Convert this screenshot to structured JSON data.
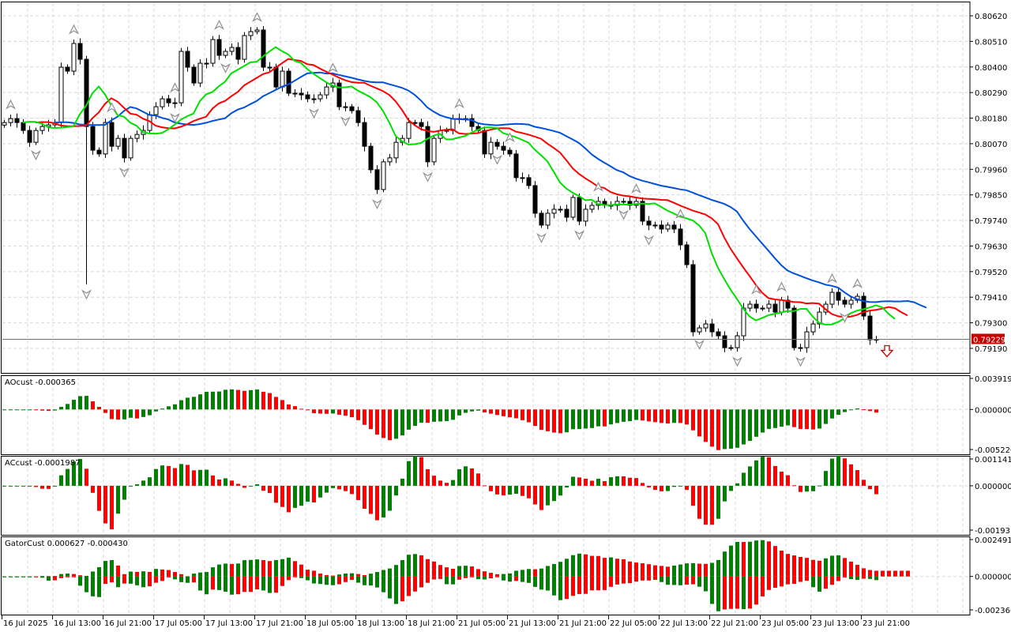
{
  "chart_data": {
    "type": "candlestick",
    "symbol_timeframe": "H1",
    "price_axis": {
      "max": 0.8062,
      "ticks": [
        "0.80620",
        "0.80510",
        "0.80400",
        "0.80290",
        "0.80180",
        "0.80070",
        "0.79960",
        "0.79850",
        "0.79740",
        "0.79630",
        "0.79520",
        "0.79410",
        "0.79300",
        "0.79190"
      ]
    },
    "current_price": "0.79229",
    "time_labels": [
      "16 Jul 2025",
      "16 Jul 13:00",
      "16 Jul 21:00",
      "17 Jul 05:00",
      "17 Jul 13:00",
      "17 Jul 21:00",
      "18 Jul 05:00",
      "18 Jul 13:00",
      "18 Jul 21:00",
      "21 Jul 05:00",
      "21 Jul 13:00",
      "21 Jul 21:00",
      "22 Jul 05:00",
      "22 Jul 13:00",
      "22 Jul 21:00",
      "23 Jul 05:00",
      "23 Jul 13:00",
      "23 Jul 21:00"
    ],
    "time_label_every_bars": 8,
    "closes": [
      0.80161,
      0.80178,
      0.80161,
      0.80127,
      0.80076,
      0.80127,
      0.80144,
      0.80151,
      0.80161,
      0.80399,
      0.80382,
      0.80501,
      0.80433,
      0.80144,
      0.80042,
      0.80026,
      0.80161,
      0.80059,
      0.80093,
      0.80009,
      0.80093,
      0.8011,
      0.80127,
      0.80195,
      0.80229,
      0.80263,
      0.80246,
      0.80246,
      0.80467,
      0.80399,
      0.80331,
      0.80416,
      0.80416,
      0.80518,
      0.8045,
      0.80467,
      0.80484,
      0.80433,
      0.80535,
      0.80552,
      0.80559,
      0.80399,
      0.80399,
      0.80314,
      0.80382,
      0.80287,
      0.80287,
      0.8028,
      0.80263,
      0.80263,
      0.8028,
      0.80314,
      0.80331,
      0.80229,
      0.80229,
      0.80212,
      0.80161,
      0.80059,
      0.79958,
      0.79873,
      0.79992,
      0.80009,
      0.80076,
      0.80093,
      0.80161,
      0.80161,
      0.80144,
      0.79992,
      0.80093,
      0.80127,
      0.80127,
      0.80178,
      0.80178,
      0.80178,
      0.80144,
      0.80127,
      0.80026,
      0.80076,
      0.80059,
      0.80042,
      0.80026,
      0.79924,
      0.79924,
      0.7989,
      0.79771,
      0.7972,
      0.79771,
      0.79788,
      0.79788,
      0.79754,
      0.79839,
      0.79737,
      0.79788,
      0.79805,
      0.79822,
      0.79805,
      0.79805,
      0.79822,
      0.79822,
      0.79805,
      0.79822,
      0.79737,
      0.7972,
      0.7972,
      0.79703,
      0.7972,
      0.79703,
      0.79635,
      0.7955,
      0.79261,
      0.79278,
      0.79295,
      0.79261,
      0.79244,
      0.79193,
      0.79193,
      0.79244,
      0.79363,
      0.7938,
      0.79363,
      0.79363,
      0.7938,
      0.79346,
      0.79397,
      0.79363,
      0.79193,
      0.79193,
      0.79261,
      0.79295,
      0.79346,
      0.7938,
      0.79431,
      0.79397,
      0.7938,
      0.79397,
      0.79414,
      0.79329,
      0.79227,
      0.79229
    ],
    "first_open": 0.8015,
    "long_wicks": [
      {
        "bar": 13,
        "low": 0.79465
      }
    ],
    "fractals_up": [
      1,
      11,
      17,
      27,
      34,
      40,
      52,
      72,
      80,
      94,
      100,
      107,
      119,
      123,
      131,
      135
    ],
    "fractals_down": [
      5,
      13,
      19,
      27,
      35,
      49,
      54,
      59,
      67,
      78,
      85,
      91,
      98,
      102,
      110,
      116,
      126,
      133
    ],
    "alligator": {
      "jaw": {
        "period": 13,
        "shift": 8,
        "color": "#0050dc"
      },
      "teeth": {
        "period": 8,
        "shift": 5,
        "color": "#ff0000"
      },
      "lips": {
        "period": 5,
        "shift": 3,
        "color": "#00e000"
      }
    },
    "panels": [
      {
        "id": "ao",
        "title": "AOcust -0.000365",
        "max": "0.003919",
        "zero": "0.000000",
        "min": "-0.005220"
      },
      {
        "id": "ac",
        "title": "ACcust -0.0001987",
        "max": "0.0011412",
        "zero": "0.0000000",
        "min": "-0.0019317"
      },
      {
        "id": "gator",
        "title": "GatorCust 0.000627 -0.000430",
        "max": "0.002491",
        "zero": "0.000000",
        "min": "-0.002366"
      }
    ],
    "colors": {
      "up": "#008000",
      "down": "#ff0000",
      "price_label": "#c80000",
      "grid": "#d8d8d8",
      "fractal": "#909090"
    }
  }
}
